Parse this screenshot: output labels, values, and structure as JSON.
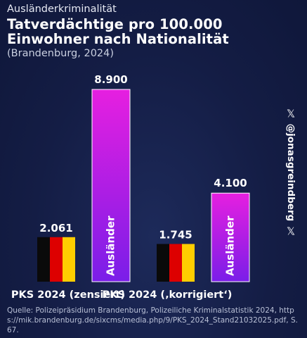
{
  "header": {
    "kicker": "Ausländerkriminalität",
    "title_line1": "Tatverdächtige pro 100.000",
    "title_line2": "Einwohner nach Nationalität",
    "subtitle": "(Brandenburg, 2024)"
  },
  "chart_data": {
    "type": "bar",
    "categories": [
      "PKS 2024 (zensiert)",
      "PKS 2024 (‚korrigiert‘)"
    ],
    "series": [
      {
        "values": [
          2061,
          1745
        ],
        "value_labels": [
          "2.061",
          "1.745"
        ],
        "style": "german-flag-stripes"
      },
      {
        "name": "Ausländer",
        "values": [
          8900,
          4100
        ],
        "value_labels": [
          "8.900",
          "4.100"
        ],
        "style": "magenta-purple-gradient"
      }
    ],
    "ylim": [
      0,
      8900
    ],
    "grid": false,
    "colors": {
      "flag_black": "#0a0a0a",
      "flag_red": "#dd0000",
      "flag_gold": "#ffce00",
      "bar_top": "#e61fe0",
      "bar_bottom": "#7a1ee8",
      "bar_border": "#ffffff"
    }
  },
  "social": {
    "icon": "x-logo",
    "handle": "@jonasgreindberg"
  },
  "source": "Quelle: Polizeipräsidium Brandenburg, Polizeiliche Kriminalstatistik 2024, https://mik.brandenburg.de/sixcms/media.php/9/PKS_2024_Stand21032025.pdf, S. 67."
}
